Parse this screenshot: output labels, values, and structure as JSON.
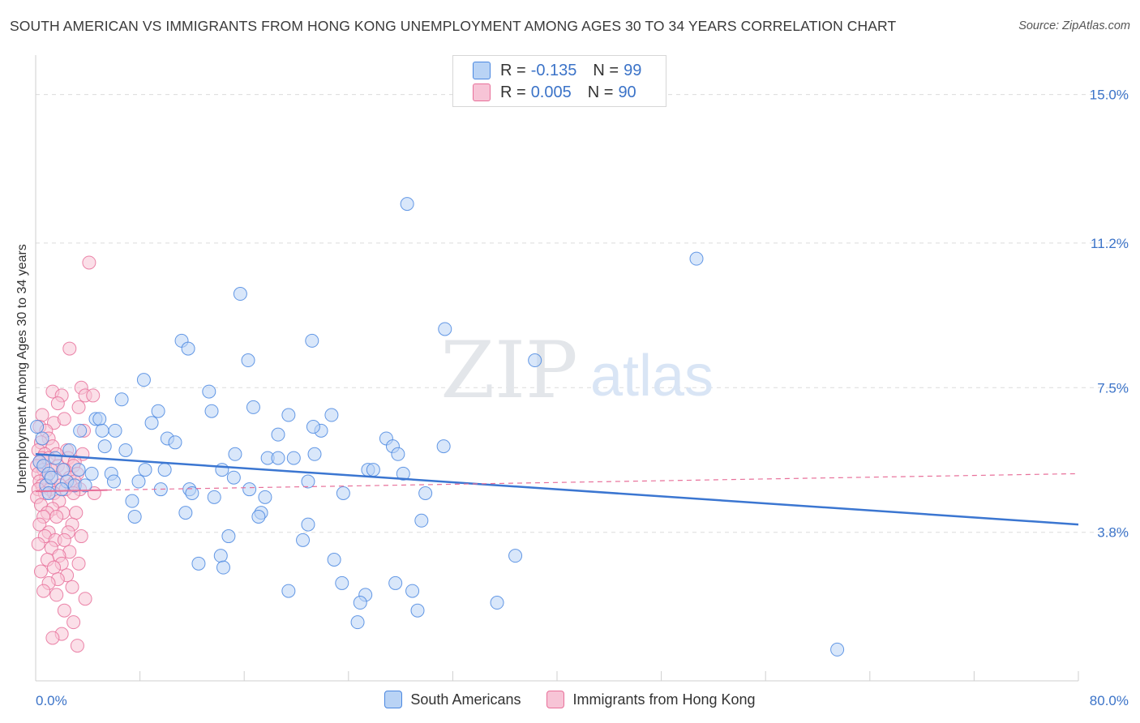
{
  "title": "SOUTH AMERICAN VS IMMIGRANTS FROM HONG KONG UNEMPLOYMENT AMONG AGES 30 TO 34 YEARS CORRELATION CHART",
  "source": "Source: ZipAtlas.com",
  "watermark": {
    "zip": "ZIP",
    "atlas": "atlas"
  },
  "legend": {
    "rows": [
      {
        "r_label": "R =",
        "r_value": "-0.135",
        "n_label": "N =",
        "n_value": "99"
      },
      {
        "r_label": "R =",
        "r_value": "0.005",
        "n_label": "N =",
        "n_value": "90"
      }
    ]
  },
  "chart_data": {
    "type": "scatter",
    "title": "SOUTH AMERICAN VS IMMIGRANTS FROM HONG KONG UNEMPLOYMENT AMONG AGES 30 TO 34 YEARS CORRELATION CHART",
    "xlabel": "",
    "ylabel": "Unemployment Among Ages 30 to 34 years",
    "xlim": [
      0,
      80
    ],
    "ylim": [
      0,
      15.8
    ],
    "x_tick_labels": [
      "0.0%",
      "80.0%"
    ],
    "y_ticks": [
      3.8,
      7.5,
      11.2,
      15.0
    ],
    "y_tick_labels": [
      "3.8%",
      "7.5%",
      "11.2%",
      "15.0%"
    ],
    "grid": true,
    "colors": {
      "blue": "#4a87e0",
      "blue_fill": "#b9d3f5",
      "pink": "#e8709a",
      "pink_fill": "#f7c4d6",
      "trend_blue": "#3b76d1",
      "trend_pink": "#e8709a",
      "value_text": "#3b73c8"
    },
    "series": [
      {
        "name": "South Americans",
        "r": -0.135,
        "n": 99,
        "trend": {
          "x": [
            0,
            80
          ],
          "y": [
            5.8,
            4.0
          ],
          "style": "solid"
        },
        "points": [
          [
            28.5,
            12.2
          ],
          [
            50.7,
            10.8
          ],
          [
            15.7,
            9.9
          ],
          [
            31.4,
            9.0
          ],
          [
            11.2,
            8.7
          ],
          [
            21.2,
            8.7
          ],
          [
            11.7,
            8.5
          ],
          [
            16.3,
            8.2
          ],
          [
            38.3,
            8.2
          ],
          [
            8.3,
            7.7
          ],
          [
            13.3,
            7.4
          ],
          [
            6.6,
            7.2
          ],
          [
            16.7,
            7.0
          ],
          [
            9.4,
            6.9
          ],
          [
            13.5,
            6.9
          ],
          [
            19.4,
            6.8
          ],
          [
            22.7,
            6.8
          ],
          [
            4.6,
            6.7
          ],
          [
            4.9,
            6.7
          ],
          [
            8.9,
            6.6
          ],
          [
            3.4,
            6.4
          ],
          [
            5.1,
            6.4
          ],
          [
            6.1,
            6.4
          ],
          [
            21.9,
            6.4
          ],
          [
            21.3,
            6.5
          ],
          [
            18.6,
            6.3
          ],
          [
            10.1,
            6.2
          ],
          [
            10.7,
            6.1
          ],
          [
            26.9,
            6.2
          ],
          [
            27.4,
            6.0
          ],
          [
            31.3,
            6.0
          ],
          [
            5.3,
            6.0
          ],
          [
            0.1,
            6.5
          ],
          [
            0.5,
            6.2
          ],
          [
            6.9,
            5.9
          ],
          [
            2.6,
            5.9
          ],
          [
            15.3,
            5.8
          ],
          [
            21.4,
            5.8
          ],
          [
            27.8,
            5.8
          ],
          [
            17.8,
            5.7
          ],
          [
            18.6,
            5.7
          ],
          [
            19.8,
            5.7
          ],
          [
            1.5,
            5.7
          ],
          [
            0.3,
            5.6
          ],
          [
            0.6,
            5.5
          ],
          [
            2.1,
            5.4
          ],
          [
            3.3,
            5.4
          ],
          [
            8.4,
            5.4
          ],
          [
            9.9,
            5.4
          ],
          [
            14.3,
            5.4
          ],
          [
            25.5,
            5.4
          ],
          [
            25.9,
            5.4
          ],
          [
            28.2,
            5.3
          ],
          [
            4.3,
            5.3
          ],
          [
            1.0,
            5.3
          ],
          [
            5.8,
            5.3
          ],
          [
            15.2,
            5.2
          ],
          [
            6.0,
            5.1
          ],
          [
            7.9,
            5.1
          ],
          [
            20.9,
            5.1
          ],
          [
            0.8,
            5.0
          ],
          [
            2.4,
            5.1
          ],
          [
            3.0,
            5.0
          ],
          [
            3.8,
            5.0
          ],
          [
            16.4,
            4.9
          ],
          [
            11.8,
            4.9
          ],
          [
            9.6,
            4.9
          ],
          [
            12.0,
            4.8
          ],
          [
            2.0,
            4.9
          ],
          [
            1.0,
            4.8
          ],
          [
            23.6,
            4.8
          ],
          [
            29.9,
            4.8
          ],
          [
            13.7,
            4.7
          ],
          [
            17.6,
            4.7
          ],
          [
            7.4,
            4.6
          ],
          [
            17.3,
            4.3
          ],
          [
            17.1,
            4.2
          ],
          [
            7.6,
            4.2
          ],
          [
            11.5,
            4.3
          ],
          [
            29.6,
            4.1
          ],
          [
            20.9,
            4.0
          ],
          [
            14.8,
            3.7
          ],
          [
            20.5,
            3.6
          ],
          [
            36.8,
            3.2
          ],
          [
            14.2,
            3.2
          ],
          [
            22.9,
            3.1
          ],
          [
            12.5,
            3.0
          ],
          [
            14.4,
            2.9
          ],
          [
            23.5,
            2.5
          ],
          [
            27.6,
            2.5
          ],
          [
            19.4,
            2.3
          ],
          [
            28.9,
            2.3
          ],
          [
            25.3,
            2.2
          ],
          [
            24.9,
            2.0
          ],
          [
            35.4,
            2.0
          ],
          [
            29.3,
            1.8
          ],
          [
            24.7,
            1.5
          ],
          [
            61.5,
            0.8
          ],
          [
            1.2,
            5.2
          ]
        ]
      },
      {
        "name": "Immigrants from Hong Kong",
        "r": 0.005,
        "n": 90,
        "trend": {
          "x": [
            0,
            80
          ],
          "y": [
            4.85,
            5.3
          ],
          "style": "dashed"
        },
        "points": [
          [
            4.1,
            10.7
          ],
          [
            2.6,
            8.5
          ],
          [
            3.5,
            7.5
          ],
          [
            1.3,
            7.4
          ],
          [
            2.0,
            7.3
          ],
          [
            3.8,
            7.3
          ],
          [
            4.4,
            7.3
          ],
          [
            1.7,
            7.1
          ],
          [
            3.3,
            7.0
          ],
          [
            0.5,
            6.8
          ],
          [
            1.4,
            6.6
          ],
          [
            2.2,
            6.7
          ],
          [
            0.3,
            6.5
          ],
          [
            0.8,
            6.4
          ],
          [
            3.7,
            6.4
          ],
          [
            1.0,
            6.2
          ],
          [
            0.4,
            6.1
          ],
          [
            1.3,
            6.0
          ],
          [
            2.4,
            5.9
          ],
          [
            0.2,
            5.9
          ],
          [
            0.7,
            5.8
          ],
          [
            1.6,
            5.8
          ],
          [
            3.6,
            5.8
          ],
          [
            0.5,
            5.7
          ],
          [
            1.0,
            5.7
          ],
          [
            2.5,
            5.7
          ],
          [
            3.0,
            5.6
          ],
          [
            0.3,
            5.6
          ],
          [
            1.7,
            5.5
          ],
          [
            2.9,
            5.5
          ],
          [
            0.1,
            5.5
          ],
          [
            0.6,
            5.4
          ],
          [
            1.2,
            5.4
          ],
          [
            2.2,
            5.4
          ],
          [
            3.2,
            5.3
          ],
          [
            0.2,
            5.3
          ],
          [
            1.5,
            5.2
          ],
          [
            2.6,
            5.2
          ],
          [
            0.8,
            5.2
          ],
          [
            3.0,
            5.1
          ],
          [
            0.3,
            5.1
          ],
          [
            1.9,
            5.0
          ],
          [
            2.7,
            5.0
          ],
          [
            0.5,
            5.0
          ],
          [
            1.1,
            4.9
          ],
          [
            2.3,
            4.9
          ],
          [
            3.4,
            4.9
          ],
          [
            0.2,
            4.9
          ],
          [
            1.4,
            4.8
          ],
          [
            2.9,
            4.8
          ],
          [
            0.7,
            4.8
          ],
          [
            0.1,
            4.7
          ],
          [
            1.8,
            4.6
          ],
          [
            0.4,
            4.5
          ],
          [
            1.3,
            4.4
          ],
          [
            0.9,
            4.3
          ],
          [
            2.1,
            4.3
          ],
          [
            3.1,
            4.3
          ],
          [
            0.6,
            4.2
          ],
          [
            1.6,
            4.2
          ],
          [
            2.8,
            4.0
          ],
          [
            0.3,
            4.0
          ],
          [
            1.0,
            3.8
          ],
          [
            2.5,
            3.8
          ],
          [
            3.5,
            3.7
          ],
          [
            0.7,
            3.7
          ],
          [
            1.5,
            3.6
          ],
          [
            2.2,
            3.6
          ],
          [
            0.2,
            3.5
          ],
          [
            1.2,
            3.4
          ],
          [
            2.6,
            3.3
          ],
          [
            1.8,
            3.2
          ],
          [
            0.9,
            3.1
          ],
          [
            2.0,
            3.0
          ],
          [
            3.3,
            3.0
          ],
          [
            1.4,
            2.9
          ],
          [
            0.4,
            2.8
          ],
          [
            2.4,
            2.7
          ],
          [
            1.7,
            2.6
          ],
          [
            1.0,
            2.5
          ],
          [
            2.8,
            2.4
          ],
          [
            0.6,
            2.3
          ],
          [
            1.6,
            2.2
          ],
          [
            3.8,
            2.1
          ],
          [
            2.2,
            1.8
          ],
          [
            2.9,
            1.5
          ],
          [
            2.0,
            1.2
          ],
          [
            1.3,
            1.1
          ],
          [
            3.2,
            0.9
          ],
          [
            4.5,
            4.8
          ]
        ]
      }
    ]
  },
  "bottom_legend": [
    "South Americans",
    "Immigrants from Hong Kong"
  ]
}
